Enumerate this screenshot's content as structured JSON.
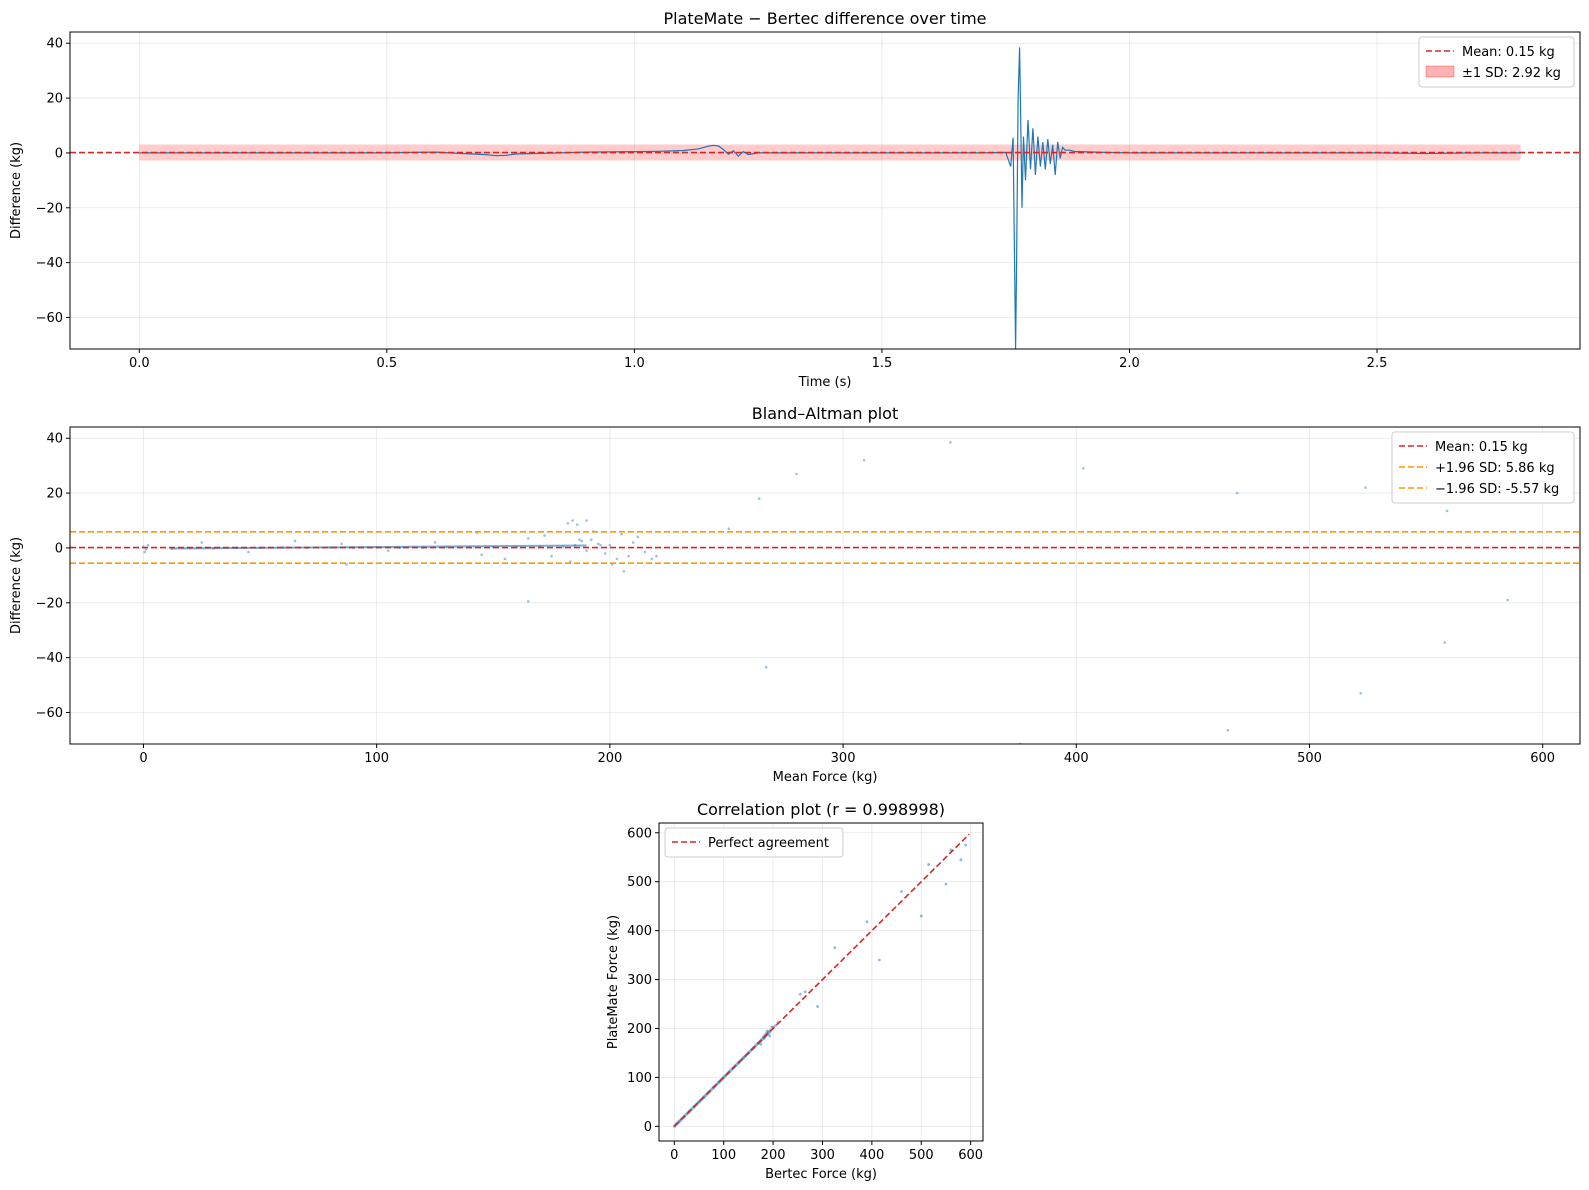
{
  "chart_data": [
    {
      "type": "line",
      "title": "PlateMate − Bertec difference over time",
      "xlabel": "Time (s)",
      "ylabel": "Difference (kg)",
      "xlim": [
        -0.14,
        2.91
      ],
      "ylim": [
        -71.5,
        44.1
      ],
      "xticks": [
        0.0,
        0.5,
        1.0,
        1.5,
        2.0,
        2.5
      ],
      "xtick_labels": [
        "0.0",
        "0.5",
        "1.0",
        "1.5",
        "2.0",
        "2.5"
      ],
      "yticks": [
        40,
        20,
        0,
        -20,
        -40,
        -60
      ],
      "ytick_labels": [
        "40",
        "20",
        "0",
        "−20",
        "−40",
        "−60"
      ],
      "grid": true,
      "legend_position": "top-right",
      "mean": 0.15,
      "band": [
        -2.77,
        3.07
      ],
      "band_x": [
        0.0,
        2.79
      ],
      "legend": [
        "Mean: 0.15 kg",
        "±1 SD: 2.92 kg"
      ],
      "series": [
        {
          "color": "#1f77b4",
          "x": [
            0.0,
            0.1,
            0.2,
            0.3,
            0.4,
            0.5,
            0.55,
            0.6,
            0.65,
            0.7,
            0.72,
            0.74,
            0.76,
            0.8,
            0.85,
            0.9,
            0.95,
            1.0,
            1.05,
            1.1,
            1.13,
            1.15,
            1.16,
            1.17,
            1.18,
            1.19,
            1.2,
            1.21,
            1.22,
            1.23,
            1.25,
            1.3,
            1.4,
            1.5,
            1.6,
            1.7,
            1.75,
            1.76,
            1.765,
            1.77,
            1.772,
            1.775,
            1.778,
            1.78,
            1.783,
            1.786,
            1.79,
            1.795,
            1.8,
            1.805,
            1.81,
            1.815,
            1.82,
            1.825,
            1.83,
            1.835,
            1.84,
            1.845,
            1.85,
            1.855,
            1.86,
            1.865,
            1.87,
            1.88,
            1.89,
            1.9,
            1.95,
            2.0,
            2.1,
            2.2,
            2.3,
            2.4,
            2.5,
            2.6,
            2.7,
            2.79
          ],
          "y": [
            0.0,
            0.0,
            0.0,
            0.0,
            0.0,
            0.0,
            0.2,
            0.3,
            -0.2,
            -0.6,
            -1.0,
            -0.9,
            -0.4,
            -0.2,
            0.0,
            0.3,
            0.4,
            0.5,
            0.6,
            0.9,
            1.5,
            2.5,
            2.8,
            2.5,
            1.2,
            -0.5,
            0.8,
            -1.2,
            0.5,
            -0.6,
            0.0,
            0.0,
            0.0,
            0.0,
            0.0,
            0.0,
            0.2,
            -5.0,
            5.5,
            -71.5,
            -40.0,
            20.0,
            38.5,
            15.0,
            -20.0,
            6.0,
            -10.0,
            12.0,
            -6.0,
            9.0,
            -8.0,
            6.0,
            -5.0,
            4.0,
            -6.0,
            5.0,
            -4.0,
            3.0,
            -8.0,
            4.0,
            -2.0,
            2.0,
            1.0,
            1.0,
            0.5,
            0.5,
            0.2,
            0.0,
            0.0,
            0.0,
            0.0,
            0.0,
            0.0,
            -0.2,
            0.0,
            0.0
          ]
        }
      ]
    },
    {
      "type": "scatter",
      "title": "Bland–Altman plot",
      "xlabel": "Mean Force (kg)",
      "ylabel": "Difference (kg)",
      "xlim": [
        -31.5,
        616
      ],
      "ylim": [
        -71.5,
        44.1
      ],
      "xticks": [
        0,
        100,
        200,
        300,
        400,
        500,
        600
      ],
      "xtick_labels": [
        "0",
        "100",
        "200",
        "300",
        "400",
        "500",
        "600"
      ],
      "yticks": [
        40,
        20,
        0,
        -20,
        -40,
        -60
      ],
      "ytick_labels": [
        "40",
        "20",
        "0",
        "−20",
        "−40",
        "−60"
      ],
      "grid": true,
      "legend_position": "top-right",
      "mean": 0.15,
      "upper_loa": 5.86,
      "lower_loa": -5.57,
      "legend": [
        "Mean: 0.15 kg",
        "+1.96 SD: 5.86 kg",
        "−1.96 SD: -5.57 kg"
      ],
      "series": [
        {
          "color": "#1f77b4",
          "x": [
            0,
            1,
            2,
            0.5,
            12,
            20,
            30,
            40,
            50,
            60,
            70,
            80,
            90,
            100,
            110,
            120,
            130,
            140,
            150,
            160,
            170,
            180,
            185,
            188,
            190,
            192,
            195,
            198,
            200,
            203,
            205,
            208,
            210,
            215,
            220,
            25,
            45,
            65,
            85,
            105,
            125,
            145,
            165,
            175,
            182,
            184,
            186,
            190,
            193,
            196,
            201,
            206,
            212,
            218,
            87,
            143,
            155,
            172,
            183,
            187,
            251,
            264,
            280,
            309,
            346,
            403,
            469,
            524,
            559,
            267,
            165,
            376,
            465,
            522,
            558,
            585
          ],
          "y": [
            0.5,
            -0.5,
            1.0,
            -1.5,
            -0.3,
            0.0,
            -0.2,
            0.1,
            0.0,
            0.2,
            0.0,
            0.1,
            0.0,
            0.2,
            0.0,
            0.1,
            0.3,
            0.2,
            0.4,
            0.3,
            0.5,
            0.6,
            1.0,
            2.5,
            -1.0,
            3.0,
            1.5,
            -2.0,
            1.0,
            -4.0,
            5.0,
            -3.0,
            2.0,
            -1.5,
            -3.0,
            2.0,
            -1.5,
            2.5,
            1.5,
            -1.0,
            2.0,
            -2.5,
            3.5,
            -3.0,
            9.0,
            10.0,
            8.5,
            10.0,
            6.0,
            1.0,
            -6.0,
            -8.5,
            4.0,
            -4.0,
            -6.0,
            5.5,
            -4.0,
            4.5,
            -5.0,
            3.0,
            7.0,
            18.0,
            27.0,
            32.0,
            38.5,
            29.0,
            20.0,
            22.0,
            13.5,
            -43.5,
            -19.5,
            -71.5,
            -66.5,
            -53.0,
            -34.5,
            -19.0
          ]
        }
      ]
    },
    {
      "type": "scatter",
      "title": "Correlation plot (r = 0.998998)",
      "xlabel": "Bertec Force (kg)",
      "ylabel": "PlateMate Force (kg)",
      "xlim": [
        -31,
        625
      ],
      "ylim": [
        -30,
        620
      ],
      "xticks": [
        0,
        100,
        200,
        300,
        400,
        500,
        600
      ],
      "xtick_labels": [
        "0",
        "100",
        "200",
        "300",
        "400",
        "500",
        "600"
      ],
      "yticks": [
        0,
        100,
        200,
        300,
        400,
        500,
        600
      ],
      "ytick_labels": [
        "0",
        "100",
        "200",
        "300",
        "400",
        "500",
        "600"
      ],
      "grid": true,
      "legend_position": "top-left",
      "legend": [
        "Perfect agreement"
      ],
      "reference_line": [
        0,
        597
      ],
      "series": [
        {
          "color": "#1f77b4",
          "x": [
            0,
            5,
            10,
            20,
            30,
            40,
            50,
            60,
            70,
            80,
            90,
            100,
            110,
            120,
            130,
            140,
            150,
            160,
            170,
            175,
            180,
            183,
            186,
            190,
            195,
            200,
            205,
            210,
            175,
            182,
            188,
            193,
            198,
            255,
            265,
            290,
            325,
            390,
            415,
            460,
            500,
            515,
            550,
            560,
            580,
            590
          ],
          "y": [
            0,
            6,
            10,
            20,
            30,
            40,
            50,
            60,
            70,
            80,
            90,
            100,
            110,
            120,
            130,
            140,
            150,
            160,
            170,
            175,
            182,
            186,
            190,
            193,
            197,
            202,
            206,
            212,
            168,
            180,
            195,
            185,
            203,
            270,
            275,
            245,
            365,
            418,
            340,
            480,
            430,
            535,
            495,
            565,
            545,
            575
          ]
        }
      ]
    }
  ]
}
